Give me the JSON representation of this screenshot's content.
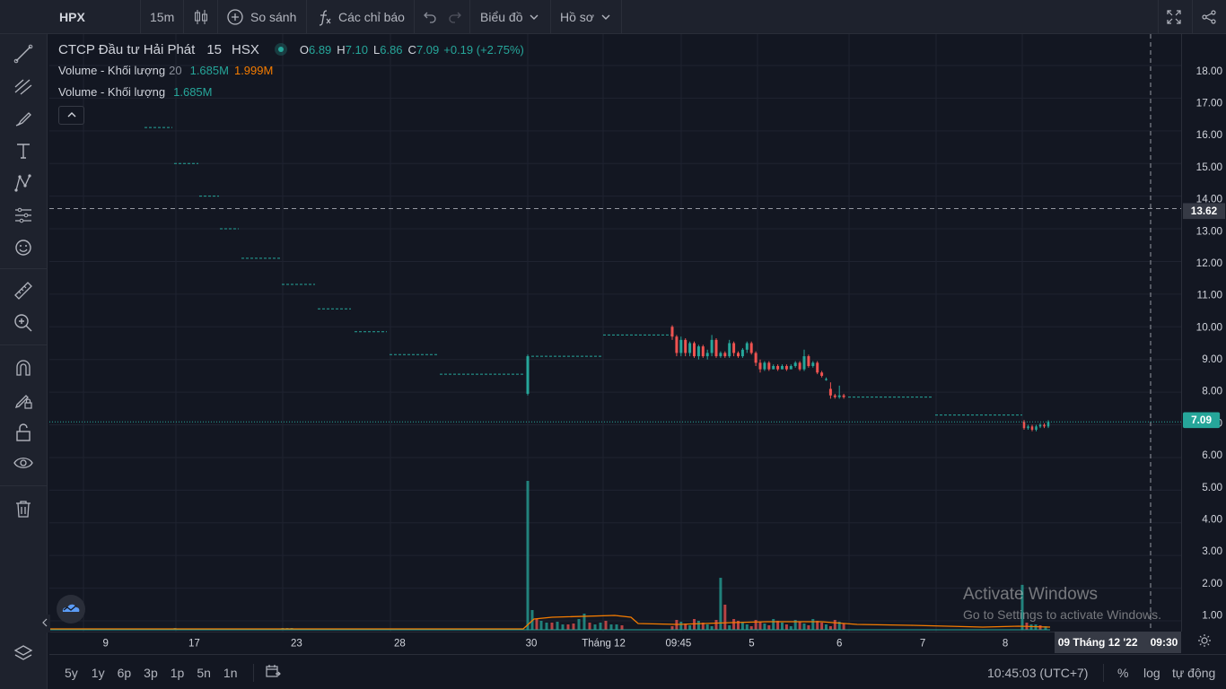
{
  "toolbar": {
    "symbol": "HPX",
    "interval": "15m",
    "compare_label": "So sánh",
    "indicators_label": "Các chỉ báo",
    "chart_menu_label": "Biểu đồ",
    "profile_menu_label": "Hồ sơ"
  },
  "legend": {
    "title": "CTCP Đầu tư Hải Phát",
    "interval": "15",
    "exchange": "HSX",
    "ohlc": {
      "o_label": "O",
      "o": "6.89",
      "h_label": "H",
      "h": "7.10",
      "l_label": "L",
      "l": "6.86",
      "c_label": "C",
      "c": "7.09",
      "change": "+0.19 (+2.75%)"
    },
    "volume1": {
      "name": "Volume - Khối lượng",
      "length": "20",
      "value": "1.685M",
      "ma": "1.999M"
    },
    "volume2": {
      "name": "Volume - Khối lượng",
      "value": "1.685M"
    }
  },
  "price_axis": {
    "ticks": [
      "18.00",
      "17.00",
      "16.00",
      "15.00",
      "14.00",
      "13.00",
      "12.00",
      "11.00",
      "10.00",
      "9.00",
      "8.00",
      "7.00",
      "6.00",
      "5.00",
      "4.00",
      "3.00",
      "2.00",
      "1.00"
    ],
    "crosshair_label": "13.62",
    "last_price_label": "7.09"
  },
  "time_axis": {
    "ticks": [
      "9",
      "17",
      "23",
      "28",
      "30",
      "Tháng 12",
      "09:45",
      "5",
      "6",
      "7",
      "8"
    ],
    "crosshair_label": "09 Tháng 12 '22",
    "crosshair_time": "09:30"
  },
  "bottombar": {
    "ranges": [
      "5y",
      "1y",
      "6p",
      "3p",
      "1p",
      "5n",
      "1n"
    ],
    "clock": "10:45:03 (UTC+7)",
    "percent_label": "%",
    "log_label": "log",
    "auto_label": "tự động"
  },
  "watermark": {
    "title": "Activate Windows",
    "subtitle": "Go to Settings to activate Windows."
  },
  "colors": {
    "background": "#131722",
    "panel": "#1e222d",
    "up": "#26a69a",
    "down": "#ef5350",
    "ma": "#f57c00",
    "grid": "#1f2330"
  },
  "chart_data": {
    "type": "candlestick",
    "y_range": [
      0.8,
      18.6
    ],
    "segments": [
      {
        "label": "8",
        "kind": "flat",
        "price": 16.1
      },
      {
        "label": "9",
        "kind": "flat",
        "price": 15.0
      },
      {
        "label": "10",
        "kind": "flat",
        "price": 14.0
      },
      {
        "label": "11",
        "kind": "flat",
        "price": 13.0
      },
      {
        "label": "17",
        "kind": "flat",
        "price": 12.1
      },
      {
        "label": "18",
        "kind": "flat",
        "price": 11.3
      },
      {
        "label": "21",
        "kind": "flat",
        "price": 10.55
      },
      {
        "label": "22",
        "kind": "flat",
        "price": 9.85
      },
      {
        "label": "23-28",
        "kind": "flat",
        "price": 9.15
      },
      {
        "label": "28-29",
        "kind": "flat",
        "price": 8.55
      },
      {
        "label": "30 open",
        "kind": "candle",
        "open": 7.95,
        "close": 9.1,
        "high": 9.15,
        "low": 7.9
      },
      {
        "label": "30",
        "kind": "flat",
        "price": 9.1
      },
      {
        "label": "Tháng 12",
        "kind": "flat",
        "price": 9.75
      },
      {
        "label": "6",
        "kind": "flat",
        "price": 7.85
      },
      {
        "label": "7",
        "kind": "flat",
        "price": 7.3
      },
      {
        "label": "8",
        "kind": "candles",
        "prices": [
          6.9,
          6.95,
          6.85,
          6.95,
          7.0,
          6.95,
          7.09
        ]
      }
    ],
    "candles_dec2_5": [
      {
        "o": 10.0,
        "c": 9.7,
        "h": 10.05,
        "l": 9.6
      },
      {
        "o": 9.7,
        "c": 9.2,
        "h": 9.75,
        "l": 9.1
      },
      {
        "o": 9.2,
        "c": 9.6,
        "h": 9.7,
        "l": 9.1
      },
      {
        "o": 9.6,
        "c": 9.2,
        "h": 9.65,
        "l": 9.1
      },
      {
        "o": 9.2,
        "c": 9.5,
        "h": 9.55,
        "l": 9.1
      },
      {
        "o": 9.5,
        "c": 9.1,
        "h": 9.55,
        "l": 9.05
      },
      {
        "o": 9.1,
        "c": 9.4,
        "h": 9.45,
        "l": 9.0
      },
      {
        "o": 9.4,
        "c": 9.1,
        "h": 9.45,
        "l": 9.05
      },
      {
        "o": 9.1,
        "c": 9.2,
        "h": 9.3,
        "l": 9.0
      },
      {
        "o": 9.2,
        "c": 9.6,
        "h": 9.75,
        "l": 9.1
      },
      {
        "o": 9.6,
        "c": 9.1,
        "h": 9.65,
        "l": 9.05
      },
      {
        "o": 9.1,
        "c": 9.2,
        "h": 9.25,
        "l": 9.05
      },
      {
        "o": 9.2,
        "c": 9.1,
        "h": 9.25,
        "l": 9.05
      },
      {
        "o": 9.1,
        "c": 9.5,
        "h": 9.6,
        "l": 9.05
      },
      {
        "o": 9.5,
        "c": 9.2,
        "h": 9.55,
        "l": 9.1
      },
      {
        "o": 9.2,
        "c": 9.1,
        "h": 9.25,
        "l": 9.05
      },
      {
        "o": 9.1,
        "c": 9.3,
        "h": 9.35,
        "l": 9.05
      },
      {
        "o": 9.3,
        "c": 9.5,
        "h": 9.55,
        "l": 9.2
      },
      {
        "o": 9.5,
        "c": 9.2,
        "h": 9.55,
        "l": 9.15
      },
      {
        "o": 9.2,
        "c": 8.9,
        "h": 9.25,
        "l": 8.8
      },
      {
        "o": 8.9,
        "c": 8.7,
        "h": 9.0,
        "l": 8.6
      },
      {
        "o": 8.7,
        "c": 8.9,
        "h": 8.95,
        "l": 8.65
      },
      {
        "o": 8.9,
        "c": 8.7,
        "h": 8.95,
        "l": 8.65
      },
      {
        "o": 8.7,
        "c": 8.8,
        "h": 8.85,
        "l": 8.7
      },
      {
        "o": 8.8,
        "c": 8.7,
        "h": 8.85,
        "l": 8.65
      },
      {
        "o": 8.7,
        "c": 8.8,
        "h": 8.85,
        "l": 8.7
      },
      {
        "o": 8.8,
        "c": 8.7,
        "h": 8.85,
        "l": 8.65
      },
      {
        "o": 8.7,
        "c": 8.8,
        "h": 8.85,
        "l": 8.7
      },
      {
        "o": 8.8,
        "c": 8.9,
        "h": 8.95,
        "l": 8.75
      },
      {
        "o": 8.9,
        "c": 8.7,
        "h": 8.95,
        "l": 8.65
      },
      {
        "o": 8.7,
        "c": 9.1,
        "h": 9.3,
        "l": 8.65
      },
      {
        "o": 9.1,
        "c": 8.8,
        "h": 9.15,
        "l": 8.75
      },
      {
        "o": 8.8,
        "c": 8.9,
        "h": 8.95,
        "l": 8.75
      },
      {
        "o": 8.9,
        "c": 8.6,
        "h": 8.95,
        "l": 8.55
      },
      {
        "o": 8.6,
        "c": 8.5,
        "h": 8.65,
        "l": 8.45
      },
      {
        "o": 8.4,
        "c": 8.4,
        "h": 8.45,
        "l": 8.35
      },
      {
        "o": 8.1,
        "c": 7.9,
        "h": 8.3,
        "l": 7.8
      },
      {
        "o": 7.9,
        "c": 7.85,
        "h": 7.95,
        "l": 7.8
      },
      {
        "o": 7.85,
        "c": 7.9,
        "h": 8.2,
        "l": 7.8
      },
      {
        "o": 7.9,
        "c": 7.85,
        "h": 7.95,
        "l": 7.8
      }
    ],
    "volume": {
      "spike_30": 5.3,
      "spike_dec3": 1.85,
      "spike_dec8": 1.6,
      "ma_note": "orange MA20 line"
    }
  }
}
